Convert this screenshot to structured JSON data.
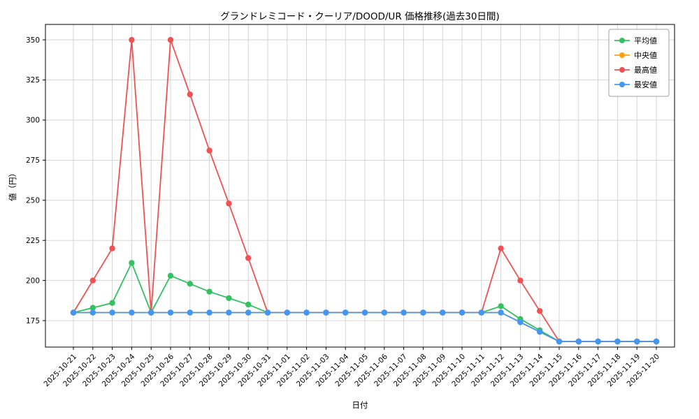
{
  "chart_data": {
    "type": "line",
    "title": "グランドレミコード・クーリア/DOOD/UR 価格推移(過去30日間)",
    "xlabel": "日付",
    "ylabel": "値（円）",
    "grid": true,
    "legend_position": "upper right",
    "ylim": [
      158.5,
      359.6
    ],
    "yticks": [
      175,
      200,
      225,
      250,
      275,
      300,
      325,
      350
    ],
    "categories": [
      "2025-10-21",
      "2025-10-22",
      "2025-10-23",
      "2025-10-24",
      "2025-10-25",
      "2025-10-26",
      "2025-10-27",
      "2025-10-28",
      "2025-10-29",
      "2025-10-30",
      "2025-10-31",
      "2025-11-01",
      "2025-11-02",
      "2025-11-03",
      "2025-11-04",
      "2025-11-05",
      "2025-11-06",
      "2025-11-07",
      "2025-11-08",
      "2025-11-09",
      "2025-11-10",
      "2025-11-11",
      "2025-11-12",
      "2025-11-13",
      "2025-11-14",
      "2025-11-15",
      "2025-11-16",
      "2025-11-17",
      "2025-11-18",
      "2025-11-19",
      "2025-11-20"
    ],
    "series": [
      {
        "key": "avg",
        "label": "平均値",
        "color": "#33c161",
        "values": [
          180,
          183,
          186,
          211,
          180,
          203,
          198,
          193,
          189,
          185,
          180,
          180,
          180,
          180,
          180,
          180,
          180,
          180,
          180,
          180,
          180,
          180,
          184,
          176,
          169,
          162,
          162,
          162,
          162,
          162,
          162
        ]
      },
      {
        "key": "median",
        "label": "中央値",
        "color": "#ffa113",
        "values": [
          180,
          180,
          180,
          180,
          180,
          180,
          180,
          180,
          180,
          180,
          180,
          180,
          180,
          180,
          180,
          180,
          180,
          180,
          180,
          180,
          180,
          180,
          180,
          174,
          168,
          162,
          162,
          162,
          162,
          162,
          162
        ]
      },
      {
        "key": "max",
        "label": "最高値",
        "color": "#f05152",
        "values": [
          180,
          200,
          220,
          350,
          180,
          350,
          316,
          281,
          248,
          214,
          180,
          180,
          180,
          180,
          180,
          180,
          180,
          180,
          180,
          180,
          180,
          180,
          220,
          200,
          181,
          162,
          162,
          162,
          162,
          162,
          162
        ]
      },
      {
        "key": "min",
        "label": "最安値",
        "color": "#4296f4",
        "values": [
          180,
          180,
          180,
          180,
          180,
          180,
          180,
          180,
          180,
          180,
          180,
          180,
          180,
          180,
          180,
          180,
          180,
          180,
          180,
          180,
          180,
          180,
          180,
          174,
          168,
          162,
          162,
          162,
          162,
          162,
          162
        ]
      }
    ]
  }
}
